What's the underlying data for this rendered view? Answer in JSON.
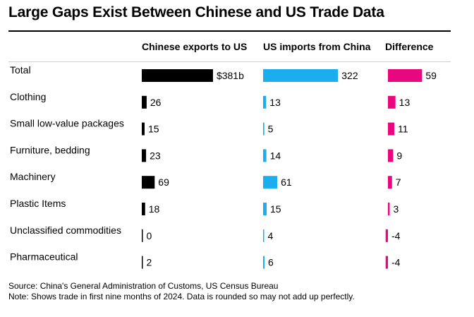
{
  "title": "Large Gaps Exist Between Chinese and US Trade Data",
  "footer": {
    "source": "Source: China's General Administration of Customs, US Census Bureau",
    "note": "Note: Shows trade in first nine months of 2024. Data is rounded so may not add up perfectly."
  },
  "colors": {
    "chinese_exports": "#000000",
    "us_imports": "#1aaeef",
    "difference": "#e8077f"
  },
  "chart_data": {
    "type": "bar",
    "categories": [
      "Total",
      "Clothing",
      "Small low-value packages",
      "Furniture, bedding",
      "Machinery",
      "Plastic Items",
      "Unclassified commodities",
      "Pharmaceutical"
    ],
    "series": [
      {
        "name": "Chinese exports to US",
        "values": [
          381,
          26,
          15,
          23,
          69,
          18,
          0,
          2
        ],
        "labels": [
          "$381b",
          "26",
          "15",
          "23",
          "69",
          "18",
          "0",
          "2"
        ]
      },
      {
        "name": "US imports from China",
        "values": [
          322,
          13,
          5,
          14,
          61,
          15,
          4,
          6
        ],
        "labels": [
          "322",
          "13",
          "5",
          "14",
          "61",
          "15",
          "4",
          "6"
        ]
      },
      {
        "name": "Difference",
        "values": [
          59,
          13,
          11,
          9,
          7,
          3,
          -4,
          -4
        ],
        "labels": [
          "59",
          "13",
          "11",
          "9",
          "7",
          "3",
          "-4",
          "-4"
        ]
      }
    ]
  }
}
